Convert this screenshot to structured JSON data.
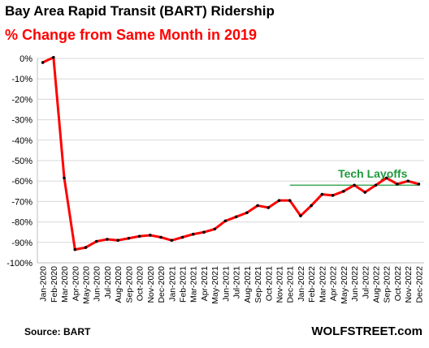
{
  "title": "Bay Area Rapid Transit (BART) Ridership",
  "subtitle": "% Change from Same Month in 2019",
  "source": "Source: BART",
  "brand": "WOLFSTREET.com",
  "colors": {
    "title": "#000000",
    "subtitle": "#ff0000",
    "line": "#ff0000",
    "marker": "#000000",
    "annotation": "#1e9a3c",
    "gridline": "#d9d9d9"
  },
  "chart_data": {
    "type": "line",
    "title": "Bay Area Rapid Transit (BART) Ridership",
    "subtitle": "% Change from Same Month in 2019",
    "xlabel": "",
    "ylabel": "",
    "ylim": [
      -100,
      0
    ],
    "yticks": [
      "0%",
      "-10%",
      "-20%",
      "-30%",
      "-40%",
      "-50%",
      "-60%",
      "-70%",
      "-80%",
      "-90%",
      "-100%"
    ],
    "grid": true,
    "legend": "none",
    "categories": [
      "Jan-2020",
      "Feb-2020",
      "Mar-2020",
      "Apr-2020",
      "May-2020",
      "Jun-2020",
      "Jul-2020",
      "Aug-2020",
      "Sep-2020",
      "Oct-2020",
      "Nov-2020",
      "Dec-2020",
      "Jan-2021",
      "Feb-2021",
      "Mar-2021",
      "Apr-2021",
      "May-2021",
      "Jun-2021",
      "Jul-2021",
      "Aug-2021",
      "Sep-2021",
      "Oct-2021",
      "Nov-2021",
      "Dec-2021",
      "Jan-2022",
      "Feb-2022",
      "Mar-2022",
      "Apr-2022",
      "May-2022",
      "Jun-2022",
      "Jul-2022",
      "Aug-2022",
      "Sep-2022",
      "Oct-2022",
      "Nov-2022",
      "Dec-2022"
    ],
    "series": [
      {
        "values": [
          -2,
          0.5,
          -58.5,
          -93.5,
          -92.5,
          -89.5,
          -88.5,
          -89,
          -88,
          -87,
          -86.5,
          -87.5,
          -89,
          -87.5,
          -86,
          -85,
          -83.5,
          -79.5,
          -77.5,
          -75.5,
          -72,
          -73,
          -69.5,
          -69.5,
          -77,
          -72,
          -66.5,
          -67,
          -65,
          -62,
          -65.5,
          -62,
          -58.5,
          -61.5,
          -60,
          -61.5
        ]
      }
    ],
    "annotations": [
      {
        "text": "Tech Layoffs",
        "reference_line_y": -62,
        "from": "Dec-2021",
        "to": "Dec-2022"
      }
    ]
  }
}
